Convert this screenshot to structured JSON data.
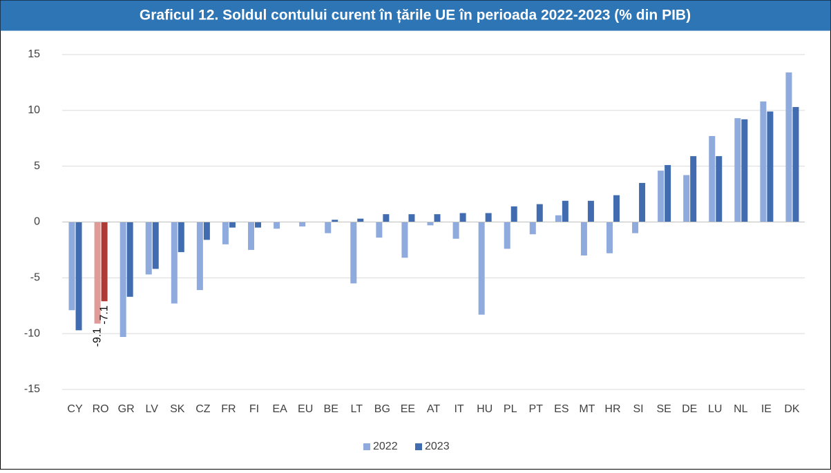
{
  "chart_data": {
    "type": "bar",
    "title": "Graficul 12. Soldul contului curent în țările UE în perioada 2022-2023 (% din PIB)",
    "categories": [
      "CY",
      "RO",
      "GR",
      "LV",
      "SK",
      "CZ",
      "FR",
      "FI",
      "EA",
      "EU",
      "BE",
      "LT",
      "BG",
      "EE",
      "AT",
      "IT",
      "HU",
      "PL",
      "PT",
      "ES",
      "MT",
      "HR",
      "SI",
      "SE",
      "DE",
      "LU",
      "NL",
      "IE",
      "DK"
    ],
    "series": [
      {
        "name": "2022",
        "color": "#8faadc",
        "highlight_color": "#e09a98",
        "values": [
          -7.9,
          -9.1,
          -10.3,
          -4.7,
          -7.3,
          -6.1,
          -2.0,
          -2.5,
          -0.6,
          -0.4,
          -1.0,
          -5.5,
          -1.4,
          -3.2,
          -0.3,
          -1.5,
          -8.3,
          -2.4,
          -1.1,
          0.6,
          -3.0,
          -2.8,
          -1.0,
          4.6,
          4.2,
          7.7,
          9.3,
          10.8,
          13.4
        ]
      },
      {
        "name": "2023",
        "color": "#416db0",
        "highlight_color": "#b03a36",
        "values": [
          -9.7,
          -7.1,
          -6.7,
          -4.2,
          -2.7,
          -1.6,
          -0.5,
          -0.5,
          null,
          null,
          0.2,
          0.3,
          0.7,
          0.7,
          0.7,
          0.8,
          0.8,
          1.4,
          1.6,
          1.9,
          1.9,
          2.4,
          3.5,
          5.1,
          5.9,
          5.9,
          9.2,
          9.9,
          10.3
        ]
      }
    ],
    "highlight_category": "RO",
    "ylim": [
      -15,
      15
    ],
    "yticks": [
      -15,
      -10,
      -5,
      0,
      5,
      10,
      15
    ],
    "grid": true,
    "legend": "bottom"
  }
}
